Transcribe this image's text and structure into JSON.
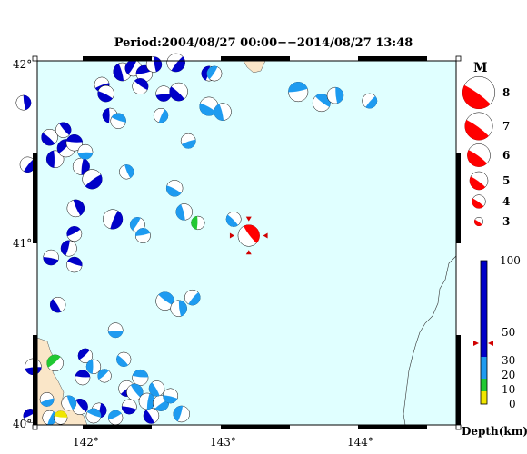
{
  "title": "Period:2004/08/27 00:00−−2014/08/27 13:48",
  "axes": {
    "lat_ticks": [
      "42°",
      "41°",
      "40°"
    ],
    "lon_ticks": [
      "142°",
      "143°",
      "144°"
    ]
  },
  "legend": {
    "magnitude_title": "M",
    "magnitudes": [
      "8",
      "7",
      "6",
      "5",
      "4",
      "3"
    ],
    "depth_title": "Depth(km)",
    "depth_ticks": [
      "100",
      "50",
      "30",
      "20",
      "10",
      "0"
    ]
  },
  "colors": {
    "ocean": "#e0ffff",
    "land": "#fae6c8",
    "deep": "#0000c8",
    "mid": "#1e9bf0",
    "shallow": "#22c832",
    "very_shallow": "#f0e600",
    "highlight": "#ff0000"
  },
  "events": [
    {
      "lon": 141.55,
      "lat": 41.77,
      "m": 4.3,
      "d": "deep"
    },
    {
      "lon": 141.58,
      "lat": 41.43,
      "m": 4.4,
      "d": "deep"
    },
    {
      "lon": 141.62,
      "lat": 40.32,
      "m": 4.6,
      "d": "deep"
    },
    {
      "lon": 141.74,
      "lat": 41.58,
      "m": 4.6,
      "d": "deep"
    },
    {
      "lon": 141.78,
      "lat": 41.46,
      "m": 4.8,
      "d": "deep"
    },
    {
      "lon": 141.86,
      "lat": 41.52,
      "m": 4.9,
      "d": "deep"
    },
    {
      "lon": 141.92,
      "lat": 41.55,
      "m": 4.6,
      "d": "deep"
    },
    {
      "lon": 141.84,
      "lat": 41.62,
      "m": 4.4,
      "d": "deep"
    },
    {
      "lon": 141.97,
      "lat": 41.42,
      "m": 4.7,
      "d": "deep"
    },
    {
      "lon": 142.05,
      "lat": 41.35,
      "m": 5.3,
      "d": "deep"
    },
    {
      "lon": 141.75,
      "lat": 40.92,
      "m": 4.4,
      "d": "deep"
    },
    {
      "lon": 141.8,
      "lat": 40.66,
      "m": 4.4,
      "d": "deep"
    },
    {
      "lon": 141.88,
      "lat": 40.97,
      "m": 4.5,
      "d": "deep"
    },
    {
      "lon": 141.92,
      "lat": 41.05,
      "m": 4.3,
      "d": "deep"
    },
    {
      "lon": 141.92,
      "lat": 40.88,
      "m": 4.4,
      "d": "deep"
    },
    {
      "lon": 141.93,
      "lat": 41.19,
      "m": 4.8,
      "d": "deep"
    },
    {
      "lon": 142.2,
      "lat": 41.13,
      "m": 5.3,
      "d": "deep"
    },
    {
      "lon": 142.12,
      "lat": 41.87,
      "m": 4.3,
      "d": "deep"
    },
    {
      "lon": 142.15,
      "lat": 41.82,
      "m": 4.6,
      "d": "deep"
    },
    {
      "lon": 142.27,
      "lat": 41.94,
      "m": 5.0,
      "d": "deep"
    },
    {
      "lon": 142.35,
      "lat": 41.96,
      "m": 4.6,
      "d": "deep"
    },
    {
      "lon": 142.43,
      "lat": 41.93,
      "m": 4.6,
      "d": "deep"
    },
    {
      "lon": 142.4,
      "lat": 41.86,
      "m": 4.5,
      "d": "deep"
    },
    {
      "lon": 142.5,
      "lat": 41.98,
      "m": 4.4,
      "d": "deep"
    },
    {
      "lon": 142.66,
      "lat": 41.99,
      "m": 5.0,
      "d": "deep"
    },
    {
      "lon": 142.57,
      "lat": 41.82,
      "m": 4.4,
      "d": "deep"
    },
    {
      "lon": 142.68,
      "lat": 41.83,
      "m": 5.0,
      "d": "deep"
    },
    {
      "lon": 142.18,
      "lat": 41.7,
      "m": 4.3,
      "d": "deep"
    },
    {
      "lon": 142.0,
      "lat": 40.38,
      "m": 4.2,
      "d": "deep"
    },
    {
      "lon": 141.98,
      "lat": 40.26,
      "m": 4.3,
      "d": "deep"
    },
    {
      "lon": 141.96,
      "lat": 40.1,
      "m": 4.5,
      "d": "deep"
    },
    {
      "lon": 142.1,
      "lat": 40.08,
      "m": 4.3,
      "d": "deep"
    },
    {
      "lon": 142.3,
      "lat": 40.2,
      "m": 4.5,
      "d": "deep"
    },
    {
      "lon": 142.32,
      "lat": 40.1,
      "m": 4.3,
      "d": "deep"
    },
    {
      "lon": 142.48,
      "lat": 40.05,
      "m": 4.4,
      "d": "deep"
    },
    {
      "lon": 142.9,
      "lat": 41.93,
      "m": 4.3,
      "d": "deep"
    },
    {
      "lon": 141.6,
      "lat": 40.05,
      "m": 4.1,
      "d": "deep"
    },
    {
      "lon": 142.24,
      "lat": 41.67,
      "m": 4.4,
      "d": "mid"
    },
    {
      "lon": 142.3,
      "lat": 41.39,
      "m": 4.2,
      "d": "mid"
    },
    {
      "lon": 142.55,
      "lat": 41.7,
      "m": 4.2,
      "d": "mid"
    },
    {
      "lon": 142.75,
      "lat": 41.56,
      "m": 4.3,
      "d": "mid"
    },
    {
      "lon": 142.65,
      "lat": 41.3,
      "m": 4.6,
      "d": "mid"
    },
    {
      "lon": 142.72,
      "lat": 41.17,
      "m": 4.6,
      "d": "mid"
    },
    {
      "lon": 142.38,
      "lat": 41.1,
      "m": 4.3,
      "d": "mid"
    },
    {
      "lon": 142.42,
      "lat": 41.04,
      "m": 4.3,
      "d": "mid"
    },
    {
      "lon": 142.58,
      "lat": 40.68,
      "m": 5.0,
      "d": "mid"
    },
    {
      "lon": 142.68,
      "lat": 40.64,
      "m": 4.6,
      "d": "mid"
    },
    {
      "lon": 142.78,
      "lat": 40.7,
      "m": 4.4,
      "d": "mid"
    },
    {
      "lon": 142.22,
      "lat": 40.52,
      "m": 4.3,
      "d": "mid"
    },
    {
      "lon": 142.28,
      "lat": 40.36,
      "m": 4.2,
      "d": "mid"
    },
    {
      "lon": 142.06,
      "lat": 40.32,
      "m": 4.2,
      "d": "mid"
    },
    {
      "lon": 142.14,
      "lat": 40.27,
      "m": 4.0,
      "d": "mid"
    },
    {
      "lon": 142.4,
      "lat": 40.26,
      "m": 4.5,
      "d": "mid"
    },
    {
      "lon": 142.36,
      "lat": 40.18,
      "m": 4.6,
      "d": "mid"
    },
    {
      "lon": 142.45,
      "lat": 40.13,
      "m": 4.6,
      "d": "mid"
    },
    {
      "lon": 142.55,
      "lat": 40.12,
      "m": 4.5,
      "d": "mid"
    },
    {
      "lon": 142.62,
      "lat": 40.16,
      "m": 4.3,
      "d": "mid"
    },
    {
      "lon": 142.52,
      "lat": 40.2,
      "m": 4.4,
      "d": "mid"
    },
    {
      "lon": 142.7,
      "lat": 40.06,
      "m": 4.6,
      "d": "mid"
    },
    {
      "lon": 142.22,
      "lat": 40.04,
      "m": 4.2,
      "d": "mid"
    },
    {
      "lon": 142.06,
      "lat": 40.05,
      "m": 4.3,
      "d": "mid"
    },
    {
      "lon": 141.88,
      "lat": 40.12,
      "m": 4.3,
      "d": "mid"
    },
    {
      "lon": 141.74,
      "lat": 40.04,
      "m": 4.2,
      "d": "mid"
    },
    {
      "lon": 141.72,
      "lat": 40.14,
      "m": 4.1,
      "d": "mid"
    },
    {
      "lon": 142.9,
      "lat": 41.75,
      "m": 5.1,
      "d": "mid"
    },
    {
      "lon": 143.0,
      "lat": 41.72,
      "m": 4.8,
      "d": "mid"
    },
    {
      "lon": 142.94,
      "lat": 41.93,
      "m": 4.3,
      "d": "mid"
    },
    {
      "lon": 143.55,
      "lat": 41.83,
      "m": 5.3,
      "d": "mid"
    },
    {
      "lon": 143.72,
      "lat": 41.77,
      "m": 4.9,
      "d": "mid"
    },
    {
      "lon": 143.82,
      "lat": 41.81,
      "m": 4.6,
      "d": "mid"
    },
    {
      "lon": 144.07,
      "lat": 41.78,
      "m": 4.3,
      "d": "mid"
    },
    {
      "lon": 142.0,
      "lat": 41.5,
      "m": 4.3,
      "d": "mid"
    },
    {
      "lon": 143.08,
      "lat": 41.13,
      "m": 4.3,
      "d": "mid"
    },
    {
      "lon": 142.82,
      "lat": 41.11,
      "m": 4.0,
      "d": "shallow"
    },
    {
      "lon": 141.78,
      "lat": 40.34,
      "m": 4.6,
      "d": "shallow"
    },
    {
      "lon": 141.82,
      "lat": 40.04,
      "m": 4.0,
      "d": "very_shallow"
    },
    {
      "lon": 143.19,
      "lat": 41.04,
      "m": 5.7,
      "d": "highlight"
    }
  ]
}
